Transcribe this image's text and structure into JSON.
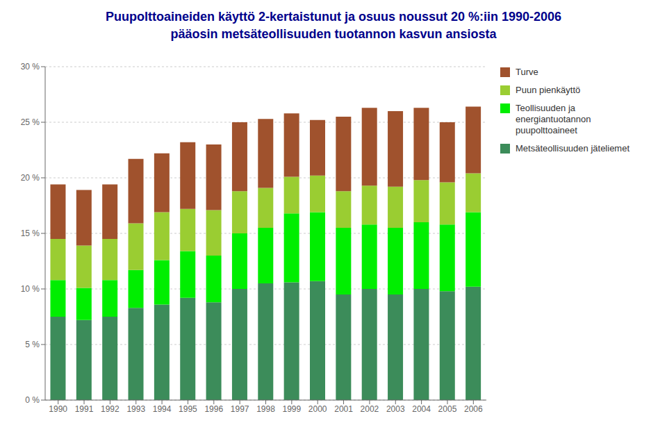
{
  "chart_data": {
    "type": "bar",
    "title": "Puupolttoaineiden käyttö 2-kertaistunut ja osuus noussut 20 %:iin 1990-2006",
    "subtitle": "pääosin metsäteollisuuden tuotannon kasvun ansiosta",
    "categories": [
      1990,
      1991,
      1992,
      1993,
      1994,
      1995,
      1996,
      1997,
      1998,
      1999,
      2000,
      2001,
      2002,
      2003,
      2004,
      2005,
      2006
    ],
    "series": [
      {
        "name": "Metsäteollisuuden jäteliemet",
        "color": "#3C8C5A",
        "values": [
          7.5,
          7.2,
          7.5,
          8.3,
          8.6,
          9.2,
          8.8,
          10.0,
          10.5,
          10.6,
          10.7,
          9.5,
          10.0,
          9.5,
          10.0,
          9.8,
          10.2
        ]
      },
      {
        "name": "Teollisuuden ja energiantuotannon puupolttoaineet",
        "color": "#00EE00",
        "values": [
          3.3,
          2.9,
          3.3,
          3.4,
          4.0,
          4.2,
          4.2,
          5.0,
          5.0,
          6.2,
          6.2,
          6.0,
          5.8,
          6.0,
          6.0,
          6.0,
          6.7
        ]
      },
      {
        "name": "Puun pienkäyttö",
        "color": "#9ACD32",
        "values": [
          3.7,
          3.8,
          3.7,
          4.2,
          4.3,
          3.8,
          4.1,
          3.8,
          3.6,
          3.3,
          3.3,
          3.3,
          3.5,
          3.7,
          3.8,
          3.8,
          3.5
        ]
      },
      {
        "name": "Turve",
        "color": "#A0522D",
        "values": [
          4.9,
          5.0,
          4.9,
          5.8,
          5.3,
          6.0,
          5.9,
          6.2,
          6.2,
          5.7,
          5.0,
          6.7,
          7.0,
          6.8,
          6.5,
          5.4,
          6.0
        ]
      }
    ],
    "stacked": true,
    "ylim": [
      0,
      30
    ],
    "yticks": [
      {
        "value": 0,
        "label": "0 %"
      },
      {
        "value": 5,
        "label": "5 %"
      },
      {
        "value": 10,
        "label": "10 %"
      },
      {
        "value": 15,
        "label": "15 %"
      },
      {
        "value": 20,
        "label": "20 %"
      },
      {
        "value": 25,
        "label": "25 %"
      },
      {
        "value": 30,
        "label": "30 %"
      }
    ],
    "grid": true,
    "legend": "right"
  }
}
